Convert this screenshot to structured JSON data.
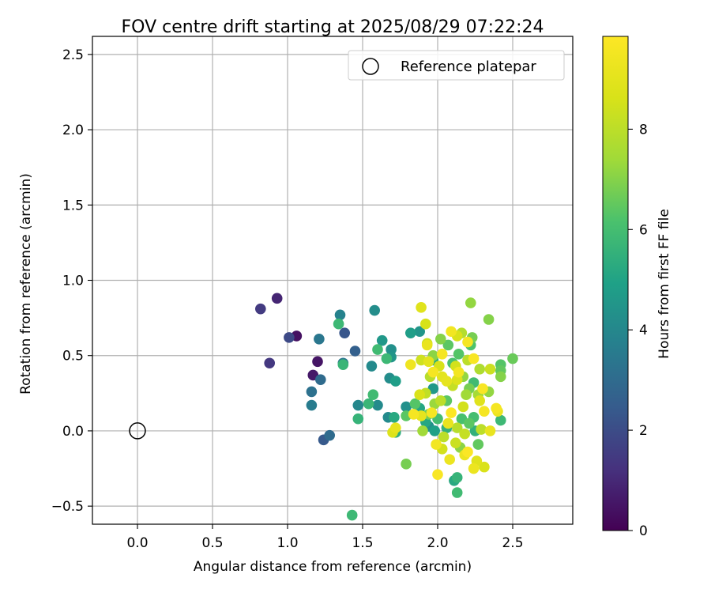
{
  "chart_data": {
    "type": "scatter",
    "title": "FOV centre drift starting at 2025/08/29 07:22:24",
    "xlabel": "Angular distance from reference (arcmin)",
    "ylabel": "Rotation from reference (arcmin)",
    "xlim": [
      -0.3,
      2.9
    ],
    "ylim": [
      -0.62,
      2.62
    ],
    "xticks": [
      "0.0",
      "0.5",
      "1.0",
      "1.5",
      "2.0",
      "2.5"
    ],
    "yticks": [
      "−0.5",
      "0.0",
      "0.5",
      "1.0",
      "1.5",
      "2.0",
      "2.5"
    ],
    "grid": true,
    "legend": {
      "placement": "top-right",
      "entries": [
        "Reference platepar"
      ]
    },
    "reference_point": {
      "x": 0.0,
      "y": 0.0
    },
    "colorbar": {
      "label": "Hours from first FF file",
      "range": [
        0,
        9.85
      ],
      "ticks": [
        "0",
        "2",
        "4",
        "6",
        "8"
      ],
      "colormap": "viridis"
    },
    "series": [
      {
        "columns": [
          "x",
          "y",
          "hours"
        ],
        "points": [
          [
            0.93,
            0.88,
            0.9
          ],
          [
            0.82,
            0.81,
            1.5
          ],
          [
            1.06,
            0.63,
            0.4
          ],
          [
            1.01,
            0.62,
            1.9
          ],
          [
            0.88,
            0.45,
            1.4
          ],
          [
            1.2,
            0.46,
            0.5
          ],
          [
            1.17,
            0.37,
            0.6
          ],
          [
            1.22,
            0.34,
            3.0
          ],
          [
            1.16,
            0.26,
            3.2
          ],
          [
            1.16,
            0.17,
            3.6
          ],
          [
            1.21,
            0.61,
            3.4
          ],
          [
            1.35,
            0.77,
            3.8
          ],
          [
            1.38,
            0.65,
            2.3
          ],
          [
            1.34,
            0.71,
            5.8
          ],
          [
            1.37,
            0.45,
            3.4
          ],
          [
            1.37,
            0.44,
            5.7
          ],
          [
            1.45,
            0.53,
            2.6
          ],
          [
            1.58,
            0.8,
            4.2
          ],
          [
            1.24,
            -0.06,
            2.4
          ],
          [
            1.28,
            -0.03,
            3.0
          ],
          [
            1.43,
            -0.56,
            5.8
          ],
          [
            1.56,
            0.43,
            4.1
          ],
          [
            1.57,
            0.24,
            5.9
          ],
          [
            1.54,
            0.18,
            5.7
          ],
          [
            1.47,
            0.17,
            4.0
          ],
          [
            1.47,
            0.08,
            5.6
          ],
          [
            1.6,
            0.17,
            4.1
          ],
          [
            1.6,
            0.54,
            5.9
          ],
          [
            1.63,
            0.6,
            4.6
          ],
          [
            1.66,
            0.48,
            5.8
          ],
          [
            1.69,
            0.54,
            4.3
          ],
          [
            1.69,
            0.49,
            4.5
          ],
          [
            1.68,
            0.35,
            4.2
          ],
          [
            1.72,
            0.33,
            4.8
          ],
          [
            1.67,
            0.09,
            4.1
          ],
          [
            1.71,
            0.09,
            5.2
          ],
          [
            1.72,
            -0.01,
            5.4
          ],
          [
            1.79,
            0.16,
            4.3
          ],
          [
            1.79,
            0.1,
            6.4
          ],
          [
            1.79,
            -0.22,
            6.8
          ],
          [
            1.82,
            0.65,
            4.8
          ],
          [
            1.88,
            0.66,
            4.5
          ],
          [
            1.82,
            0.44,
            9.4
          ],
          [
            1.89,
            0.47,
            8.4
          ],
          [
            1.92,
            0.71,
            8.6
          ],
          [
            1.89,
            0.82,
            8.9
          ],
          [
            1.93,
            0.57,
            9.2
          ],
          [
            1.93,
            0.58,
            8.3
          ],
          [
            1.97,
            0.5,
            7.1
          ],
          [
            2.02,
            0.61,
            7.0
          ],
          [
            2.03,
            0.51,
            9.6
          ],
          [
            2.07,
            0.57,
            6.4
          ],
          [
            2.09,
            0.66,
            9.5
          ],
          [
            2.13,
            0.63,
            8.7
          ],
          [
            2.16,
            0.65,
            7.8
          ],
          [
            2.2,
            0.59,
            9.6
          ],
          [
            2.22,
            0.57,
            6.2
          ],
          [
            2.23,
            0.62,
            6.8
          ],
          [
            2.22,
            0.85,
            7.2
          ],
          [
            2.34,
            0.74,
            7.0
          ],
          [
            2.5,
            0.48,
            6.6
          ],
          [
            2.42,
            0.44,
            6.3
          ],
          [
            2.42,
            0.4,
            6.5
          ],
          [
            2.42,
            0.36,
            7.0
          ],
          [
            2.35,
            0.41,
            8.3
          ],
          [
            2.28,
            0.41,
            7.7
          ],
          [
            2.24,
            0.48,
            9.7
          ],
          [
            2.2,
            0.47,
            8.0
          ],
          [
            2.14,
            0.51,
            6.3
          ],
          [
            2.12,
            0.43,
            8.5
          ],
          [
            2.1,
            0.45,
            6.1
          ],
          [
            2.14,
            0.39,
            9.5
          ],
          [
            2.17,
            0.36,
            7.2
          ],
          [
            2.13,
            0.34,
            8.8
          ],
          [
            2.1,
            0.3,
            8.2
          ],
          [
            2.06,
            0.33,
            9.1
          ],
          [
            2.03,
            0.36,
            9.0
          ],
          [
            2.01,
            0.43,
            8.6
          ],
          [
            1.97,
            0.47,
            5.3
          ],
          [
            1.94,
            0.46,
            9.0
          ],
          [
            1.97,
            0.39,
            9.6
          ],
          [
            1.95,
            0.36,
            7.9
          ],
          [
            1.97,
            0.28,
            4.6
          ],
          [
            1.92,
            0.25,
            8.1
          ],
          [
            1.88,
            0.24,
            8.7
          ],
          [
            1.85,
            0.18,
            6.3
          ],
          [
            1.88,
            0.15,
            5.1
          ],
          [
            1.89,
            0.1,
            9.1
          ],
          [
            1.92,
            0.06,
            5.1
          ],
          [
            1.94,
            0.11,
            6.7
          ],
          [
            1.96,
            0.12,
            9.6
          ],
          [
            1.98,
            0.18,
            7.3
          ],
          [
            2.02,
            0.2,
            8.0
          ],
          [
            2.06,
            0.2,
            6.4
          ],
          [
            2.09,
            0.12,
            9.8
          ],
          [
            2.07,
            0.05,
            9.2
          ],
          [
            2.06,
            0.02,
            5.5
          ],
          [
            2.04,
            -0.04,
            8.0
          ],
          [
            1.99,
            -0.09,
            9.5
          ],
          [
            2.03,
            -0.12,
            8.5
          ],
          [
            2.0,
            -0.29,
            9.7
          ],
          [
            2.08,
            -0.19,
            9.3
          ],
          [
            2.11,
            -0.33,
            5.2
          ],
          [
            2.13,
            -0.31,
            5.6
          ],
          [
            2.13,
            -0.41,
            5.9
          ],
          [
            2.15,
            -0.11,
            7.1
          ],
          [
            2.18,
            -0.16,
            9.3
          ],
          [
            2.2,
            -0.14,
            9.8
          ],
          [
            2.24,
            -0.25,
            9.3
          ],
          [
            2.26,
            -0.2,
            8.9
          ],
          [
            2.27,
            -0.09,
            6.5
          ],
          [
            2.31,
            -0.24,
            8.7
          ],
          [
            2.25,
            0.0,
            5.5
          ],
          [
            2.29,
            0.01,
            8.0
          ],
          [
            2.35,
            0.0,
            9.2
          ],
          [
            2.42,
            0.07,
            5.8
          ],
          [
            2.39,
            0.15,
            9.6
          ],
          [
            2.4,
            0.13,
            9.3
          ],
          [
            2.31,
            0.13,
            9.6
          ],
          [
            2.28,
            0.2,
            8.9
          ],
          [
            2.3,
            0.28,
            9.7
          ],
          [
            2.27,
            0.24,
            7.5
          ],
          [
            2.34,
            0.26,
            7.2
          ],
          [
            2.24,
            0.32,
            5.9
          ],
          [
            2.21,
            0.28,
            6.8
          ],
          [
            2.19,
            0.24,
            7.4
          ],
          [
            2.17,
            0.16,
            8.5
          ],
          [
            2.16,
            0.08,
            6.1
          ],
          [
            2.21,
            0.05,
            6.4
          ],
          [
            2.24,
            0.09,
            6.0
          ],
          [
            2.13,
            0.02,
            7.9
          ],
          [
            2.18,
            -0.02,
            8.2
          ],
          [
            2.12,
            -0.08,
            8.3
          ],
          [
            1.84,
            0.11,
            9.6
          ],
          [
            1.94,
            0.03,
            4.3
          ],
          [
            1.98,
            0.0,
            4.9
          ],
          [
            2.0,
            0.08,
            6.0
          ],
          [
            1.72,
            0.02,
            9.1
          ],
          [
            1.7,
            -0.01,
            8.8
          ],
          [
            1.9,
            0.0,
            7.4
          ]
        ]
      }
    ]
  }
}
